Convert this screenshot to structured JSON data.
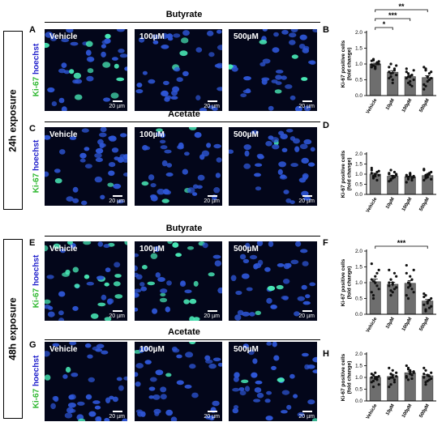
{
  "exposures": [
    "24h exposure",
    "48h exposure"
  ],
  "rows": [
    {
      "letter": "A",
      "chart_letter": "B",
      "title": "Butyrate"
    },
    {
      "letter": "C",
      "chart_letter": "D",
      "title": "Acetate"
    },
    {
      "letter": "E",
      "chart_letter": "F",
      "title": "Butyrate"
    },
    {
      "letter": "G",
      "chart_letter": "H",
      "title": "Acetate"
    }
  ],
  "stain_labels": {
    "ki67": "Ki-67",
    "hoechst": "hoechst"
  },
  "image_labels": [
    "Vehicle",
    "100µM",
    "500µM"
  ],
  "scale_label": "20 µm",
  "colors": {
    "ki67": "#2fb830",
    "hoechst": "#2222cc",
    "nucleus_blue": "#2e56d6",
    "nucleus_green": "#48e6b4",
    "bar_fill": "#6e6e6e"
  },
  "chart_data": [
    {
      "type": "bar",
      "panel": "B",
      "ylabel": "Ki-67 positive cells (fold change)",
      "ylim": [
        0,
        2.0
      ],
      "yticks": [
        0,
        0.5,
        1.0,
        1.5,
        2.0
      ],
      "categories": [
        "Vehicle",
        "10µM",
        "100µM",
        "500µM"
      ],
      "values": [
        1.0,
        0.74,
        0.6,
        0.57
      ],
      "points": [
        [
          1.1,
          0.95,
          0.85,
          1.05,
          1.0,
          0.9,
          1.15,
          0.92,
          1.0,
          1.08,
          0.98,
          1.12,
          0.88
        ],
        [
          0.9,
          0.6,
          0.5,
          0.85,
          0.95,
          0.75,
          0.7,
          0.4,
          0.8,
          0.65,
          0.55,
          1.0,
          0.72
        ],
        [
          0.75,
          0.4,
          0.6,
          0.3,
          0.8,
          0.55,
          0.7,
          0.45,
          0.65,
          0.5,
          0.85,
          0.6,
          0.35
        ],
        [
          0.9,
          0.3,
          0.6,
          0.5,
          0.75,
          0.2,
          0.85,
          0.45,
          0.7,
          0.55,
          0.35,
          0.8,
          0.6
        ]
      ],
      "significance": [
        {
          "from": 0,
          "to": 1,
          "label": "*"
        },
        {
          "from": 0,
          "to": 2,
          "label": "***"
        },
        {
          "from": 0,
          "to": 3,
          "label": "**"
        }
      ]
    },
    {
      "type": "bar",
      "panel": "D",
      "ylabel": "Ki-67 positive cells (fold change)",
      "ylim": [
        0,
        2.0
      ],
      "yticks": [
        0,
        0.5,
        1.0,
        1.5,
        2.0
      ],
      "categories": [
        "Vehicle",
        "10µM",
        "100µM",
        "500µM"
      ],
      "values": [
        1.0,
        0.9,
        0.87,
        0.93
      ],
      "points": [
        [
          1.2,
          0.8,
          0.9,
          1.1,
          0.95,
          1.3,
          0.85,
          1.0,
          0.7,
          1.15,
          1.05,
          0.9,
          1.0
        ],
        [
          1.0,
          0.7,
          0.8,
          1.1,
          0.95,
          1.05,
          0.75,
          0.9,
          0.85,
          1.0,
          0.65,
          1.2,
          0.9
        ],
        [
          0.9,
          0.8,
          1.0,
          0.7,
          0.85,
          0.95,
          0.75,
          1.05,
          0.8,
          0.9,
          0.6,
          0.85,
          0.95
        ],
        [
          1.2,
          0.8,
          0.9,
          1.0,
          1.1,
          0.7,
          0.95,
          0.85,
          1.05,
          0.75,
          1.25,
          0.9,
          1.0
        ]
      ],
      "significance": []
    },
    {
      "type": "bar",
      "panel": "F",
      "ylabel": "Ki-67 positive cells (fold change)",
      "ylim": [
        0,
        2.0
      ],
      "yticks": [
        0,
        0.5,
        1.0,
        1.5,
        2.0
      ],
      "categories": [
        "Vehicle",
        "10µM",
        "100µM",
        "500µM"
      ],
      "values": [
        1.03,
        0.95,
        0.98,
        0.42
      ],
      "points": [
        [
          1.6,
          0.6,
          1.0,
          1.3,
          0.8,
          1.1,
          0.5,
          1.2,
          0.9,
          1.4,
          0.7,
          1.05,
          1.0
        ],
        [
          1.4,
          0.6,
          1.0,
          0.8,
          1.2,
          0.9,
          1.1,
          0.7,
          1.3,
          0.85,
          1.0,
          0.75,
          0.95
        ],
        [
          1.55,
          0.5,
          1.2,
          0.8,
          1.4,
          0.6,
          1.0,
          0.9,
          1.1,
          0.7,
          1.3,
          0.85,
          0.95
        ],
        [
          0.65,
          0.1,
          0.4,
          0.2,
          0.5,
          0.3,
          0.6,
          0.35,
          0.45,
          0.25,
          0.55,
          0.15,
          0.4
        ]
      ],
      "significance": [
        {
          "from": 0,
          "to": 3,
          "label": "***"
        }
      ]
    },
    {
      "type": "bar",
      "panel": "H",
      "ylabel": "Ki-67 positive cells (fold change)",
      "ylim": [
        0,
        2.0
      ],
      "yticks": [
        0,
        0.5,
        1.0,
        1.5,
        2.0
      ],
      "categories": [
        "Vehicle",
        "10µM",
        "100µM",
        "500µM"
      ],
      "values": [
        1.0,
        1.04,
        1.2,
        1.07
      ],
      "points": [
        [
          1.0,
          0.6,
          1.2,
          0.9,
          1.05,
          0.8,
          1.1,
          0.95,
          1.0,
          0.7,
          1.15,
          0.85,
          1.0
        ],
        [
          1.4,
          0.7,
          1.1,
          0.9,
          1.2,
          0.6,
          1.0,
          1.3,
          0.8,
          1.05,
          0.95,
          1.15,
          1.0
        ],
        [
          1.5,
          0.9,
          1.3,
          1.1,
          1.2,
          1.0,
          1.4,
          1.15,
          0.95,
          1.25,
          1.05,
          1.35,
          1.2
        ],
        [
          1.4,
          0.7,
          1.1,
          0.9,
          1.2,
          1.0,
          1.3,
          0.85,
          1.05,
          0.95,
          1.15,
          0.8,
          1.1
        ]
      ],
      "significance": []
    }
  ]
}
